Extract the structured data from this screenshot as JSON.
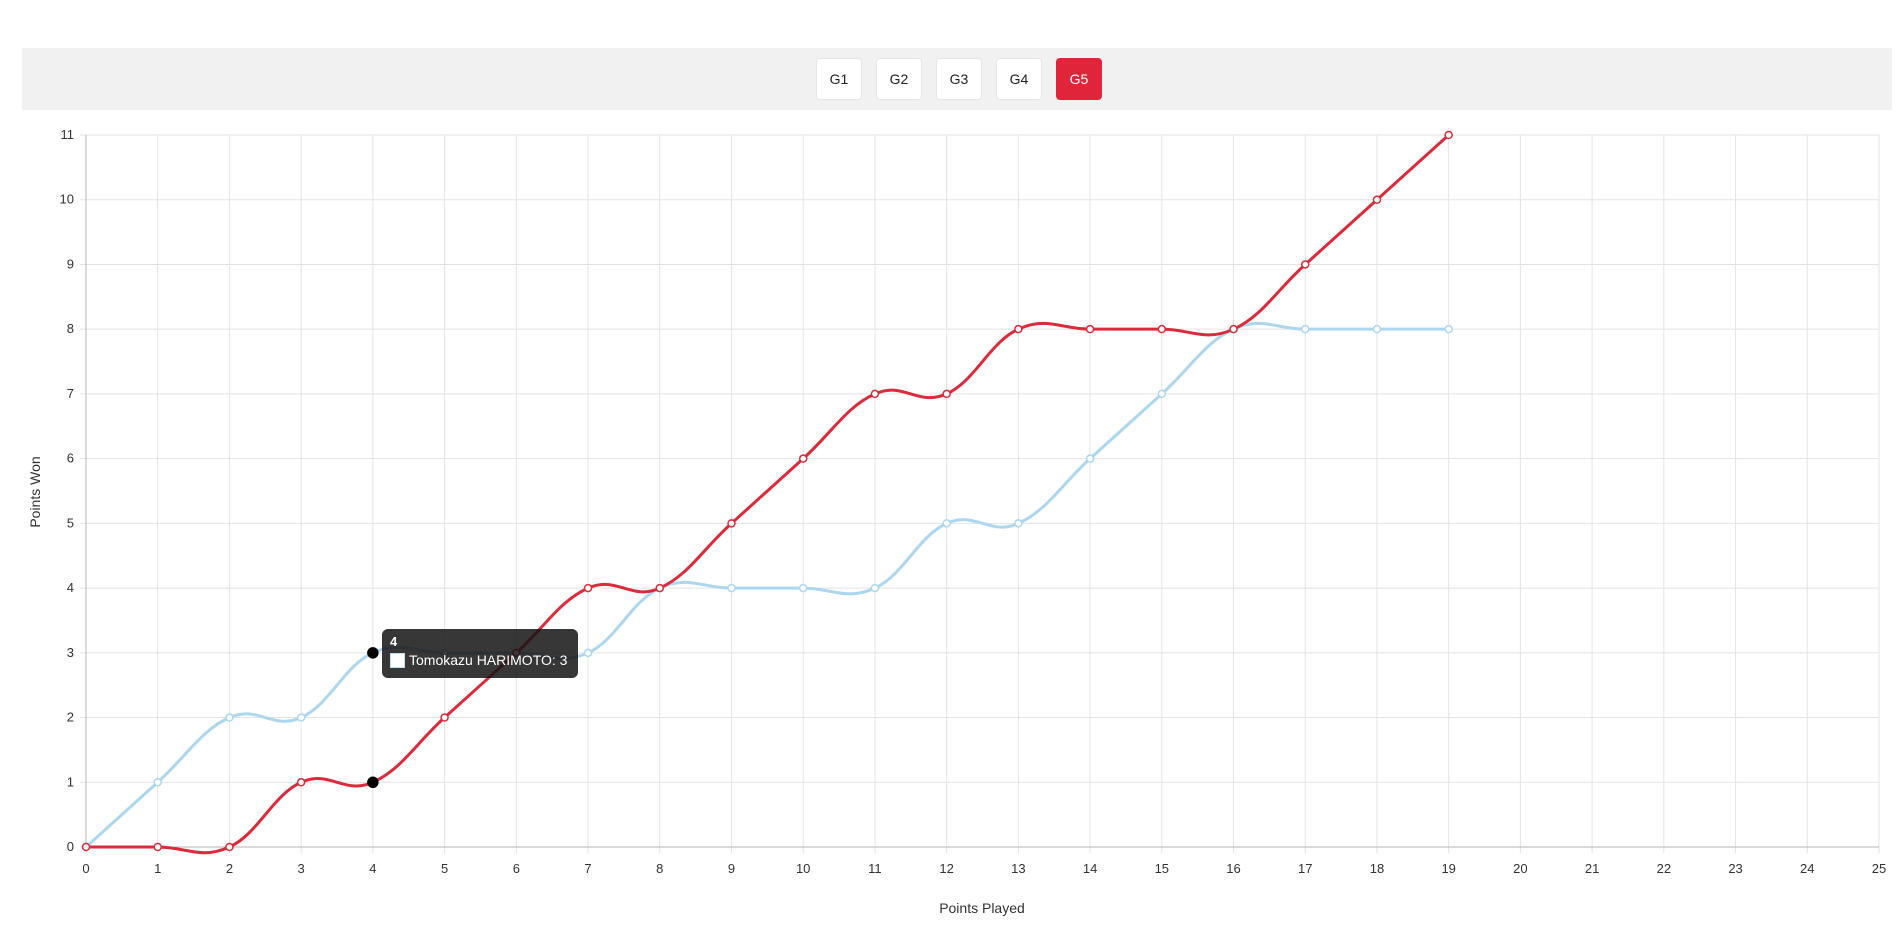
{
  "tabs": [
    {
      "label": "G1",
      "active": false
    },
    {
      "label": "G2",
      "active": false
    },
    {
      "label": "G3",
      "active": false
    },
    {
      "label": "G4",
      "active": false
    },
    {
      "label": "G5",
      "active": true
    }
  ],
  "tooltip": {
    "title": "4",
    "label": "Tomokazu HARIMOTO: 3"
  },
  "chart_data": {
    "type": "line",
    "xlabel": "Points Played",
    "ylabel": "Points Won",
    "xlim": [
      0,
      25
    ],
    "ylim": [
      0,
      11
    ],
    "x_ticks": [
      0,
      1,
      2,
      3,
      4,
      5,
      6,
      7,
      8,
      9,
      10,
      11,
      12,
      13,
      14,
      15,
      16,
      17,
      18,
      19,
      20,
      21,
      22,
      23,
      24,
      25
    ],
    "y_ticks": [
      0,
      1,
      2,
      3,
      4,
      5,
      6,
      7,
      8,
      9,
      10,
      11
    ],
    "grid": true,
    "legend": "none",
    "x": [
      0,
      1,
      2,
      3,
      4,
      5,
      6,
      7,
      8,
      9,
      10,
      11,
      12,
      13,
      14,
      15,
      16,
      17,
      18,
      19
    ],
    "series": [
      {
        "values": [
          0,
          0,
          0,
          1,
          1,
          2,
          3,
          4,
          4,
          5,
          6,
          7,
          7,
          8,
          8,
          8,
          8,
          9,
          10,
          11
        ],
        "color": "#dc2b3c"
      },
      {
        "name": "Tomokazu HARIMOTO",
        "values": [
          0,
          1,
          2,
          2,
          3,
          3,
          3,
          3,
          4,
          4,
          4,
          4,
          5,
          5,
          6,
          7,
          8,
          8,
          8,
          8
        ],
        "color": "#acd7ef"
      }
    ],
    "highlighted_x": 4
  }
}
